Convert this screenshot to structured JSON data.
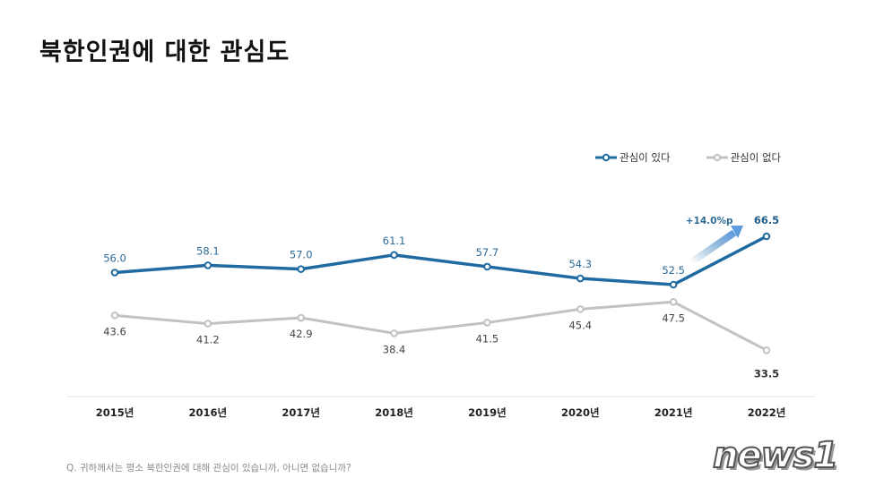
{
  "chart_data": {
    "type": "line",
    "title": "북한인권에 대한 관심도",
    "xlabel": "",
    "ylabel": "",
    "categories": [
      "2015년",
      "2016년",
      "2017년",
      "2018년",
      "2019년",
      "2020년",
      "2021년",
      "2022년"
    ],
    "series": [
      {
        "name": "관심이 있다",
        "color": "#1f6aa0",
        "values": [
          56.0,
          58.1,
          57.0,
          61.1,
          57.7,
          54.3,
          52.5,
          66.5
        ]
      },
      {
        "name": "관심이 없다",
        "color": "#c2c2c2",
        "values": [
          43.6,
          41.2,
          42.9,
          38.4,
          41.5,
          45.4,
          47.5,
          33.5
        ]
      }
    ],
    "annotations": [
      {
        "text": "+14.0%p",
        "target_series": "관심이 있다",
        "from": "2021년",
        "to": "2022년"
      }
    ],
    "legend": "top-right",
    "grid": false
  },
  "footnote": "Q. 귀하께서는 평소 북한인권에 대해 관심이 있습니까, 아니면 없습니까?",
  "watermark": "news1"
}
